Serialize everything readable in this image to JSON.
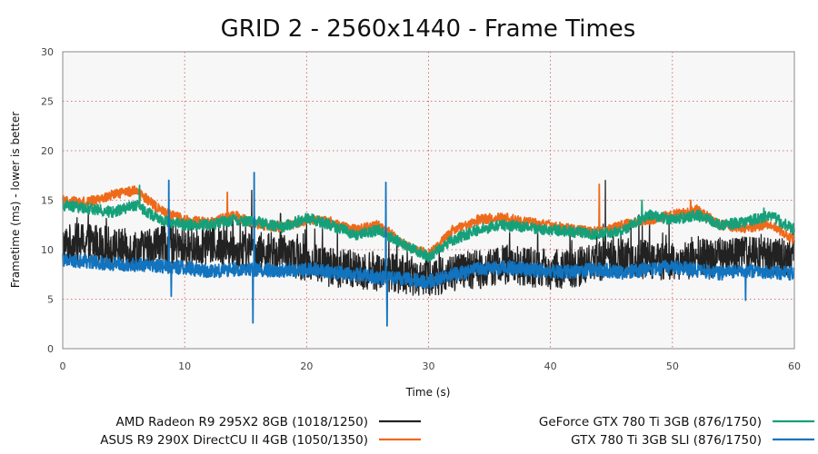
{
  "chart_data": {
    "type": "line",
    "title": "GRID 2 - 2560x1440 - Frame Times",
    "xlabel": "Time (s)",
    "ylabel": "Frametime (ms) - lower is better",
    "xlim": [
      0,
      60
    ],
    "ylim": [
      0,
      30
    ],
    "xticks": [
      0,
      10,
      20,
      30,
      40,
      50,
      60
    ],
    "yticks": [
      0,
      5,
      10,
      15,
      20,
      25,
      30
    ],
    "grid": true,
    "legend_position": "bottom",
    "series": [
      {
        "name": "AMD Radeon R9 295X2 8GB (1018/1250)",
        "color": "#222222",
        "x": [
          0,
          2,
          4,
          6,
          8,
          10,
          12,
          14,
          16,
          18,
          20,
          22,
          24,
          26,
          28,
          30,
          32,
          34,
          36,
          38,
          40,
          42,
          44,
          46,
          48,
          50,
          52,
          54,
          56,
          58,
          60
        ],
        "values": [
          10.5,
          10.8,
          10.3,
          10.0,
          10.6,
          10.2,
          10.5,
          10.0,
          9.8,
          9.5,
          8.8,
          8.2,
          8.0,
          7.8,
          7.5,
          7.2,
          7.6,
          8.0,
          8.5,
          8.3,
          8.0,
          8.2,
          8.8,
          9.2,
          9.0,
          8.8,
          9.0,
          9.3,
          9.5,
          9.2,
          9.4
        ],
        "jitter": 2.0,
        "spikes": [
          [
            8.8,
            13.0
          ],
          [
            44.5,
            17.0
          ],
          [
            15.5,
            16.0
          ]
        ]
      },
      {
        "name": "ASUS R9 290X DirectCU II 4GB (1050/1350)",
        "color": "#ee6a1b",
        "x": [
          0,
          2,
          4,
          6,
          8,
          10,
          12,
          14,
          16,
          18,
          20,
          22,
          24,
          26,
          28,
          30,
          32,
          34,
          36,
          38,
          40,
          42,
          44,
          46,
          48,
          50,
          52,
          54,
          56,
          58,
          60
        ],
        "values": [
          15.0,
          14.8,
          15.5,
          16.0,
          14.0,
          13.0,
          12.7,
          13.5,
          12.5,
          12.3,
          13.0,
          12.8,
          12.0,
          12.5,
          10.5,
          9.5,
          12.0,
          13.0,
          13.3,
          12.8,
          12.5,
          12.0,
          11.8,
          12.5,
          13.0,
          13.5,
          14.0,
          12.5,
          12.2,
          12.6,
          11.0
        ],
        "jitter": 0.5,
        "spikes": [
          [
            13.5,
            15.8
          ],
          [
            44.0,
            16.6
          ],
          [
            51.5,
            15.0
          ],
          [
            52.0,
            14.5
          ]
        ]
      },
      {
        "name": "GeForce GTX 780 Ti 3GB (876/1750)",
        "color": "#16a07a",
        "x": [
          0,
          2,
          4,
          6,
          8,
          10,
          12,
          14,
          16,
          18,
          20,
          22,
          24,
          26,
          28,
          30,
          32,
          34,
          36,
          38,
          40,
          42,
          44,
          46,
          48,
          50,
          52,
          54,
          56,
          58,
          60
        ],
        "values": [
          14.5,
          14.2,
          13.8,
          14.5,
          13.0,
          12.5,
          12.5,
          13.0,
          12.8,
          12.3,
          13.2,
          12.5,
          11.5,
          12.0,
          10.5,
          9.3,
          11.0,
          12.0,
          12.5,
          12.3,
          12.0,
          11.8,
          11.5,
          12.0,
          13.5,
          13.0,
          13.5,
          12.5,
          12.8,
          13.5,
          12.0
        ],
        "jitter": 0.55,
        "spikes": [
          [
            6.3,
            16.5
          ],
          [
            47.5,
            15.0
          ],
          [
            57.5,
            14.2
          ]
        ]
      },
      {
        "name": "GTX 780 Ti 3GB SLI (876/1750)",
        "color": "#1273be",
        "x": [
          0,
          2,
          4,
          6,
          8,
          10,
          12,
          14,
          16,
          18,
          20,
          22,
          24,
          26,
          28,
          30,
          32,
          34,
          36,
          38,
          40,
          42,
          44,
          46,
          48,
          50,
          52,
          54,
          56,
          58,
          60
        ],
        "values": [
          9.0,
          8.8,
          8.6,
          8.5,
          8.3,
          8.2,
          7.8,
          8.0,
          8.0,
          7.9,
          8.0,
          7.8,
          7.5,
          7.2,
          7.0,
          6.8,
          7.5,
          8.0,
          8.2,
          8.0,
          7.8,
          7.8,
          8.0,
          7.7,
          8.0,
          8.3,
          7.9,
          7.6,
          7.9,
          7.7,
          7.6
        ],
        "jitter": 0.7,
        "spikes": [
          [
            8.7,
            17.0
          ],
          [
            15.7,
            17.8
          ],
          [
            26.5,
            16.8
          ],
          [
            15.6,
            2.6
          ],
          [
            26.6,
            2.3
          ],
          [
            8.9,
            5.3
          ],
          [
            56.0,
            4.9
          ]
        ]
      }
    ]
  }
}
